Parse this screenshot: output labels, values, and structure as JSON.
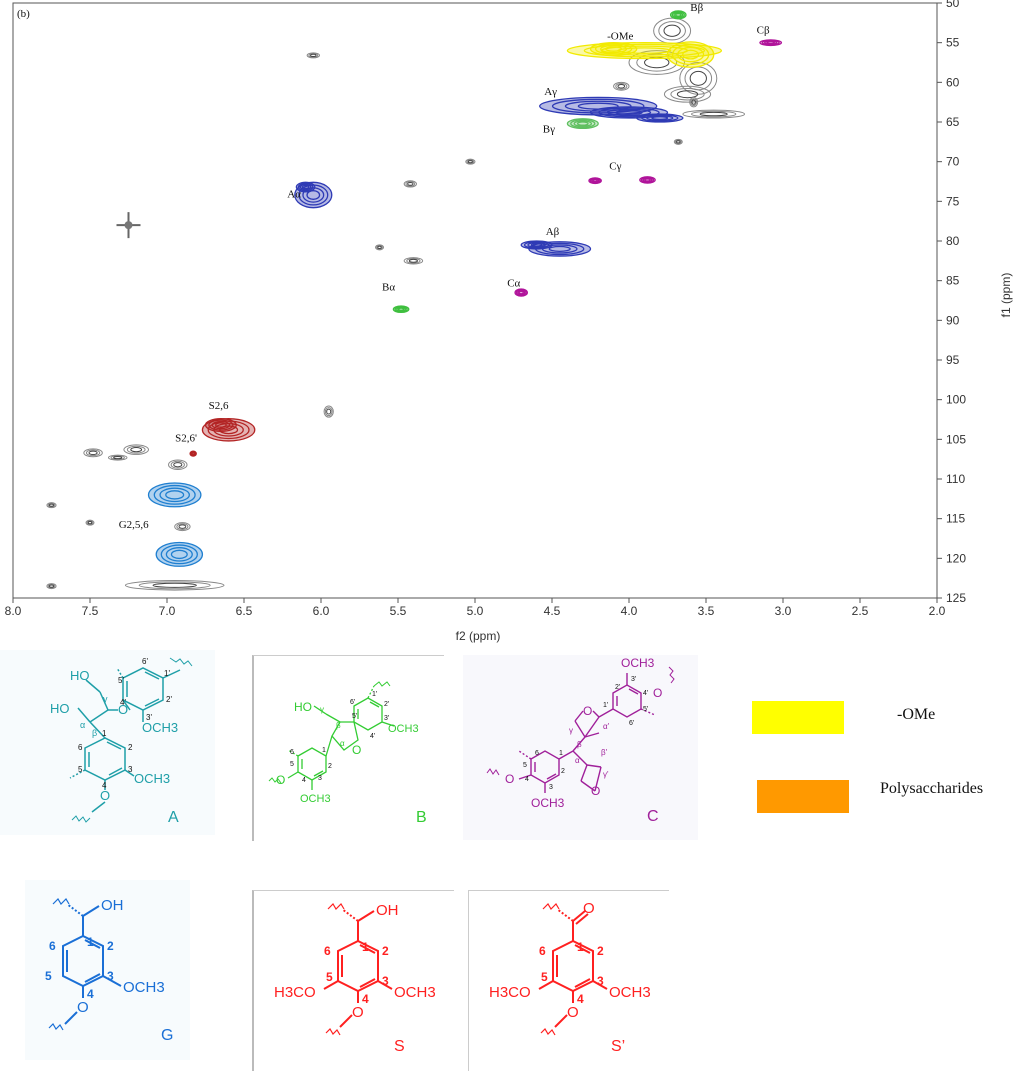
{
  "chart_data": {
    "type": "2d-nmr-hsqc",
    "panel_label": "(b)",
    "xlabel": "f2 (ppm)",
    "ylabel": "f1 (ppm)",
    "xlim": [
      8.0,
      2.0
    ],
    "ylim": [
      125,
      50
    ],
    "x_ticks": [
      "8.0",
      "7.5",
      "7.0",
      "6.5",
      "6.0",
      "5.5",
      "5.0",
      "4.5",
      "4.0",
      "3.5",
      "3.0",
      "2.5",
      "2.0"
    ],
    "y_ticks": [
      "50",
      "55",
      "60",
      "65",
      "70",
      "75",
      "80",
      "85",
      "90",
      "95",
      "100",
      "105",
      "110",
      "115",
      "120",
      "125"
    ],
    "signals": [
      {
        "name": "-OMe",
        "label": "-OMe",
        "x": 3.85,
        "y": 56.0,
        "color": "#f2ea00"
      },
      {
        "name": "Bβ",
        "label": "Bβ",
        "x": 3.68,
        "y": 51.5,
        "color": "#3fbf3f"
      },
      {
        "name": "Cβ",
        "label": "Cβ",
        "x": 3.08,
        "y": 55.0,
        "color": "#b0149a"
      },
      {
        "name": "Aγ",
        "label": "Aγ",
        "x": 4.2,
        "y": 63.0,
        "color": "#2e3ab5"
      },
      {
        "name": "Bγ",
        "label": "Bγ",
        "x": 4.3,
        "y": 65.2,
        "color": "#5fbf5f"
      },
      {
        "name": "Cγ",
        "label": "Cγ",
        "x": 4.05,
        "y": 72.5,
        "color": "#b0149a"
      },
      {
        "name": "Aα",
        "label": "Aα",
        "x": 6.05,
        "y": 74.5,
        "color": "#2e3ab5"
      },
      {
        "name": "Aβ",
        "label": "Aβ",
        "x": 4.45,
        "y": 81.0,
        "color": "#2e3ab5"
      },
      {
        "name": "Cα",
        "label": "Cα",
        "x": 4.7,
        "y": 86.5,
        "color": "#b0149a"
      },
      {
        "name": "Bα",
        "label": "Bα",
        "x": 5.5,
        "y": 88.5,
        "color": "#3fbf3f"
      },
      {
        "name": "S2,6",
        "label": "S2,6",
        "x": 6.6,
        "y": 103.8,
        "color": "#b32424"
      },
      {
        "name": "S2,6'",
        "label": "S2,6'",
        "x": 6.83,
        "y": 106.8,
        "color": "#b32424"
      },
      {
        "name": "G2,5,6",
        "label": "G2,5,6",
        "x": 6.95,
        "y": 112.0,
        "color": "#1f7fd0"
      }
    ],
    "legend": [
      {
        "label": "-OMe",
        "color": "#ffff00"
      },
      {
        "label": "Polysaccharides",
        "color": "#ff9900"
      }
    ]
  },
  "structures": [
    {
      "id": "A",
      "label": "A",
      "color": "#1f9fa8"
    },
    {
      "id": "B",
      "label": "B",
      "color": "#33cc33"
    },
    {
      "id": "C",
      "label": "C",
      "color": "#a0209a"
    },
    {
      "id": "G",
      "label": "G",
      "color": "#1a6fd6"
    },
    {
      "id": "S",
      "label": "S",
      "color": "#ff2020"
    },
    {
      "id": "Sp",
      "label": "S’",
      "color": "#ff2020"
    }
  ],
  "struct_text": {
    "HO": "HO",
    "OH": "OH",
    "O": "O",
    "OCH3": "OCH3",
    "H3CO": "H3CO",
    "n1": "1",
    "n2": "2",
    "n3": "3",
    "n4": "4",
    "n5": "5",
    "n6": "6",
    "p1": "1'",
    "p2": "2'",
    "p3": "3'",
    "p4": "4'",
    "p5": "5'",
    "p6": "6'",
    "alpha": "α",
    "beta": "β",
    "gamma": "γ",
    "alphap": "α'",
    "betap": "β'",
    "gammap": "γ'"
  }
}
